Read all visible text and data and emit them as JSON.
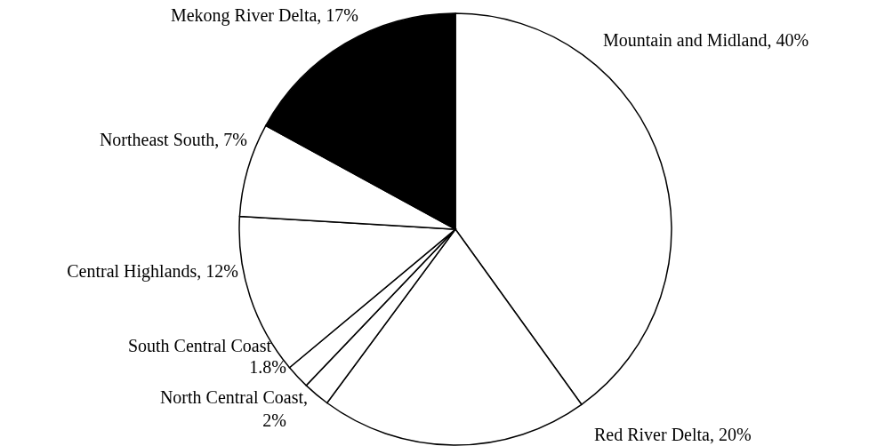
{
  "chart_data": {
    "type": "pie",
    "categories": [
      "Mountain and Midland, 40%",
      "Red River Delta, 20%",
      "North Central Coast, 2%",
      "South Central Coast 1.8%",
      "Central Highlands, 12%",
      "Northeast South, 7%",
      "Mekong River Delta, 17%"
    ],
    "values": [
      40,
      20,
      2,
      1.8,
      12,
      7,
      17
    ],
    "colors": [
      "#ffffff",
      "#ffffff",
      "#ffffff",
      "#ffffff",
      "#ffffff",
      "#ffffff",
      "#000000"
    ],
    "legend": false
  }
}
